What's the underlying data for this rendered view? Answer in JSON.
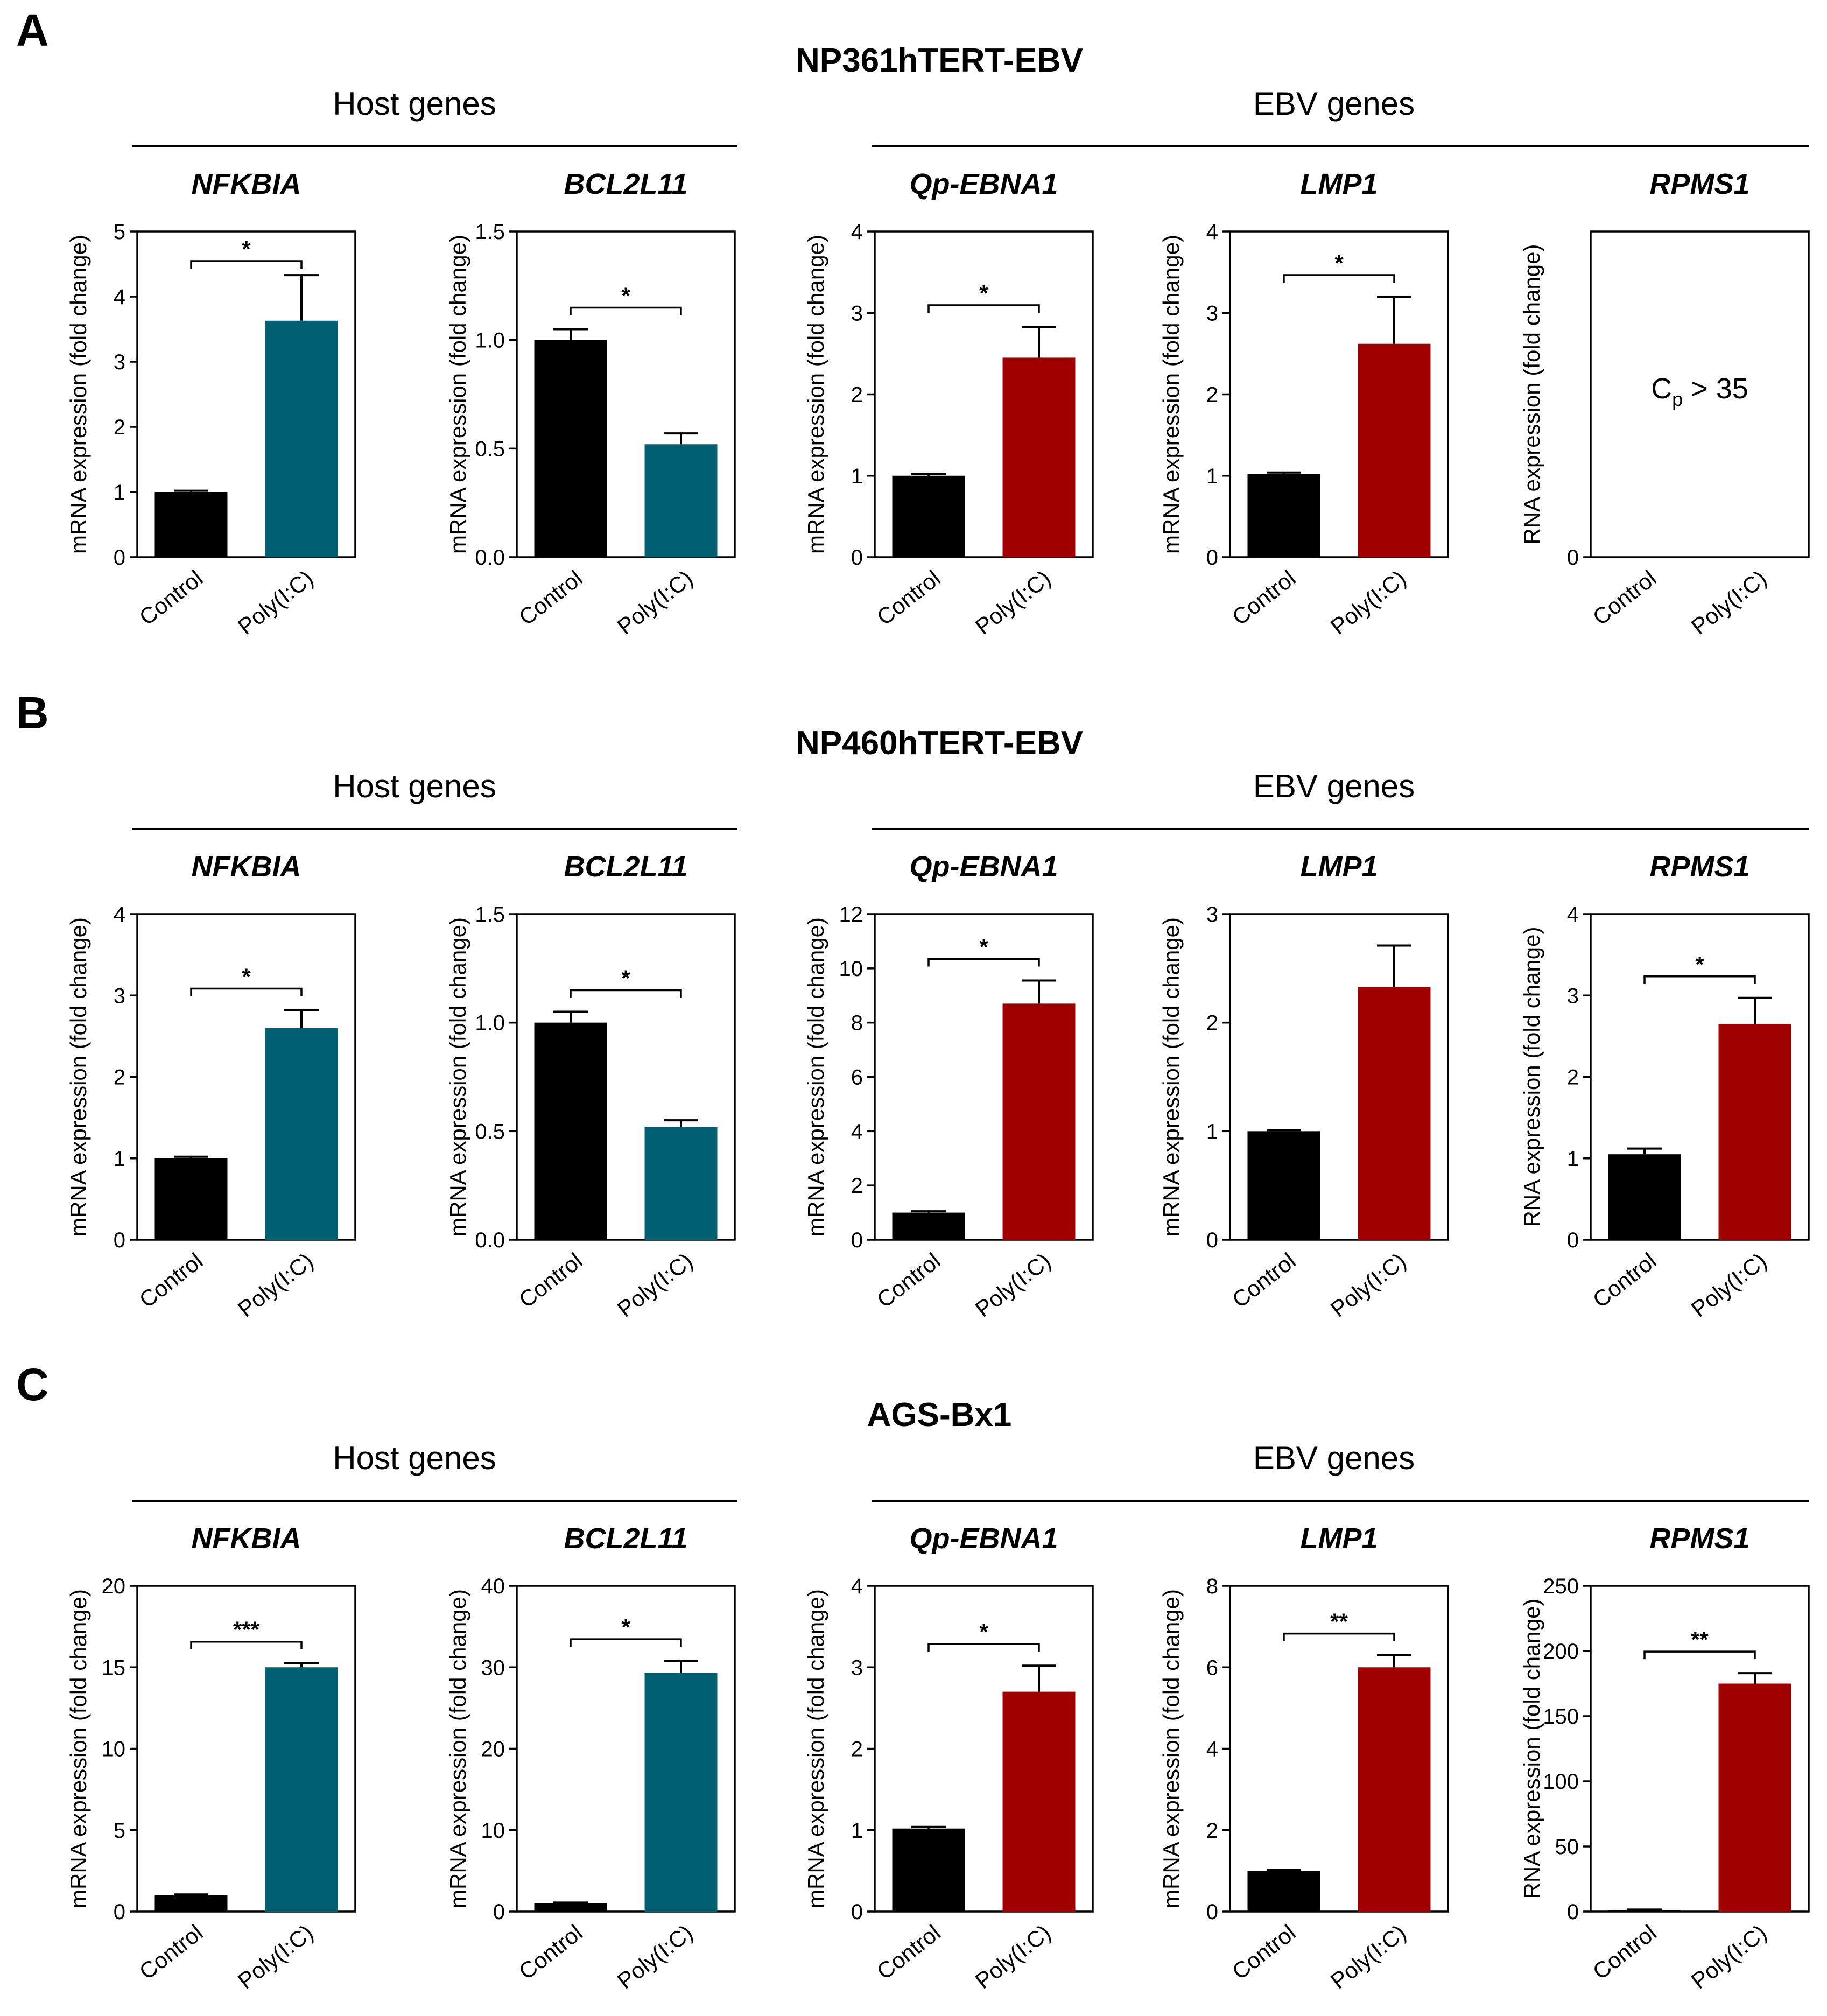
{
  "colors": {
    "control": "#000000",
    "host": "#005f70",
    "ebv": "#a00000",
    "axis": "#000000"
  },
  "rows": [
    {
      "letter": "A",
      "title": "NP361hTERT-EBV",
      "host_label": "Host genes",
      "ebv_label": "EBV genes",
      "charts": [
        {
          "type": "bar",
          "title": "NFKBIA",
          "ylabel": "mRNA expression (fold change)",
          "categories": [
            "Control",
            "Poly(I:C)"
          ],
          "values": [
            1.0,
            3.63
          ],
          "errors": [
            0.02,
            0.7
          ],
          "ylim": [
            0,
            5
          ],
          "yticks": [
            "0",
            "1",
            "2",
            "3",
            "4",
            "5"
          ],
          "significance": "*",
          "group": "host"
        },
        {
          "type": "bar",
          "title": "BCL2L11",
          "ylabel": "mRNA expression (fold change)",
          "categories": [
            "Control",
            "Poly(I:C)"
          ],
          "values": [
            1.0,
            0.52
          ],
          "errors": [
            0.05,
            0.05
          ],
          "ylim": [
            0,
            1.5
          ],
          "yticks": [
            "0.0",
            "0.5",
            "1.0",
            "1.5"
          ],
          "significance": "*",
          "group": "host"
        },
        {
          "type": "bar",
          "title": "Qp-EBNA1",
          "ylabel": "mRNA expression (fold change)",
          "categories": [
            "Control",
            "Poly(I:C)"
          ],
          "values": [
            1.0,
            2.45
          ],
          "errors": [
            0.02,
            0.38
          ],
          "ylim": [
            0,
            4
          ],
          "yticks": [
            "0",
            "1",
            "2",
            "3",
            "4"
          ],
          "significance": "*",
          "group": "ebv"
        },
        {
          "type": "bar",
          "title": "LMP1",
          "ylabel": "mRNA expression (fold change)",
          "categories": [
            "Control",
            "Poly(I:C)"
          ],
          "values": [
            1.02,
            2.62
          ],
          "errors": [
            0.02,
            0.58
          ],
          "ylim": [
            0,
            4
          ],
          "yticks": [
            "0",
            "1",
            "2",
            "3",
            "4"
          ],
          "significance": "*",
          "group": "ebv"
        },
        {
          "type": "bar",
          "title": "RPMS1",
          "ylabel": "RNA expression (fold change)",
          "categories": [
            "Control",
            "Poly(I:C)"
          ],
          "values": [
            0,
            0
          ],
          "errors": [
            0,
            0
          ],
          "ylim": [
            0,
            4
          ],
          "yticks": [
            "0"
          ],
          "significance": "",
          "group": "ebv",
          "note_main": "C",
          "note_sub": "p",
          "note_rest": " > 35"
        }
      ]
    },
    {
      "letter": "B",
      "title": "NP460hTERT-EBV",
      "host_label": "Host genes",
      "ebv_label": "EBV genes",
      "charts": [
        {
          "type": "bar",
          "title": "NFKBIA",
          "ylabel": "mRNA expression (fold change)",
          "categories": [
            "Control",
            "Poly(I:C)"
          ],
          "values": [
            1.0,
            2.6
          ],
          "errors": [
            0.02,
            0.22
          ],
          "ylim": [
            0,
            4
          ],
          "yticks": [
            "0",
            "1",
            "2",
            "3",
            "4"
          ],
          "significance": "*",
          "group": "host"
        },
        {
          "type": "bar",
          "title": "BCL2L11",
          "ylabel": "mRNA expression (fold change)",
          "categories": [
            "Control",
            "Poly(I:C)"
          ],
          "values": [
            1.0,
            0.52
          ],
          "errors": [
            0.05,
            0.03
          ],
          "ylim": [
            0,
            1.5
          ],
          "yticks": [
            "0.0",
            "0.5",
            "1.0",
            "1.5"
          ],
          "significance": "*",
          "group": "host"
        },
        {
          "type": "bar",
          "title": "Qp-EBNA1",
          "ylabel": "mRNA expression (fold change)",
          "categories": [
            "Control",
            "Poly(I:C)"
          ],
          "values": [
            1.0,
            8.7
          ],
          "errors": [
            0.05,
            0.85
          ],
          "ylim": [
            0,
            12
          ],
          "yticks": [
            "0",
            "2",
            "4",
            "6",
            "8",
            "10",
            "12"
          ],
          "significance": "*",
          "group": "ebv"
        },
        {
          "type": "bar",
          "title": "LMP1",
          "ylabel": "mRNA expression (fold change)",
          "categories": [
            "Control",
            "Poly(I:C)"
          ],
          "values": [
            1.0,
            2.33
          ],
          "errors": [
            0.01,
            0.38
          ],
          "ylim": [
            0,
            3
          ],
          "yticks": [
            "0",
            "1",
            "2",
            "3"
          ],
          "significance": "",
          "group": "ebv"
        },
        {
          "type": "bar",
          "title": "RPMS1",
          "ylabel": "RNA expression (fold change)",
          "categories": [
            "Control",
            "Poly(I:C)"
          ],
          "values": [
            1.05,
            2.65
          ],
          "errors": [
            0.07,
            0.32
          ],
          "ylim": [
            0,
            4
          ],
          "yticks": [
            "0",
            "1",
            "2",
            "3",
            "4"
          ],
          "significance": "*",
          "group": "ebv"
        }
      ]
    },
    {
      "letter": "C",
      "title": "AGS-Bx1",
      "host_label": "Host genes",
      "ebv_label": "EBV genes",
      "charts": [
        {
          "type": "bar",
          "title": "NFKBIA",
          "ylabel": "mRNA expression (fold change)",
          "categories": [
            "Control",
            "Poly(I:C)"
          ],
          "values": [
            1.0,
            15.0
          ],
          "errors": [
            0.05,
            0.25
          ],
          "ylim": [
            0,
            20
          ],
          "yticks": [
            "0",
            "5",
            "10",
            "15",
            "20"
          ],
          "significance": "***",
          "group": "host"
        },
        {
          "type": "bar",
          "title": "BCL2L11",
          "ylabel": "mRNA expression (fold change)",
          "categories": [
            "Control",
            "Poly(I:C)"
          ],
          "values": [
            1.0,
            29.3
          ],
          "errors": [
            0.1,
            1.5
          ],
          "ylim": [
            0,
            40
          ],
          "yticks": [
            "0",
            "10",
            "20",
            "30",
            "40"
          ],
          "significance": "*",
          "group": "host"
        },
        {
          "type": "bar",
          "title": "Qp-EBNA1",
          "ylabel": "mRNA expression (fold change)",
          "categories": [
            "Control",
            "Poly(I:C)"
          ],
          "values": [
            1.02,
            2.7
          ],
          "errors": [
            0.02,
            0.32
          ],
          "ylim": [
            0,
            4
          ],
          "yticks": [
            "0",
            "1",
            "2",
            "3",
            "4"
          ],
          "significance": "*",
          "group": "ebv"
        },
        {
          "type": "bar",
          "title": "LMP1",
          "ylabel": "mRNA expression (fold change)",
          "categories": [
            "Control",
            "Poly(I:C)"
          ],
          "values": [
            1.0,
            6.0
          ],
          "errors": [
            0.02,
            0.3
          ],
          "ylim": [
            0,
            8
          ],
          "yticks": [
            "0",
            "2",
            "4",
            "6",
            "8"
          ],
          "significance": "**",
          "group": "ebv"
        },
        {
          "type": "bar",
          "title": "RPMS1",
          "ylabel": "RNA expression (fold change)",
          "categories": [
            "Control",
            "Poly(I:C)"
          ],
          "values": [
            1.0,
            175
          ],
          "errors": [
            0.5,
            8
          ],
          "ylim": [
            0,
            250
          ],
          "yticks": [
            "0",
            "50",
            "100",
            "150",
            "200",
            "250"
          ],
          "significance": "**",
          "group": "ebv"
        }
      ]
    }
  ]
}
